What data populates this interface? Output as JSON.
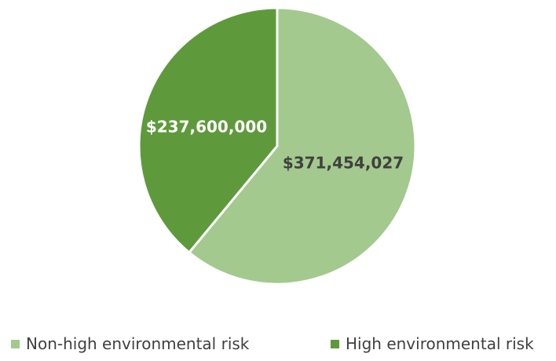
{
  "chart_data": {
    "type": "pie",
    "categories": [
      "Non-high environmental risk",
      "High environmental risk"
    ],
    "values": [
      371454027,
      237600000
    ],
    "data_labels": [
      "$371,454,027",
      "$237,600,000"
    ],
    "colors": [
      "#A3C98E",
      "#5E9A3C"
    ],
    "label_colors": [
      "#404040",
      "#FFFFFF"
    ],
    "start_angle_deg": 0,
    "direction": "clockwise",
    "legend": "bottom",
    "title": ""
  },
  "legend": {
    "items": [
      {
        "label": "Non-high environmental risk",
        "color": "#A3C98E"
      },
      {
        "label": "High environmental risk",
        "color": "#5E9A3C"
      }
    ]
  }
}
